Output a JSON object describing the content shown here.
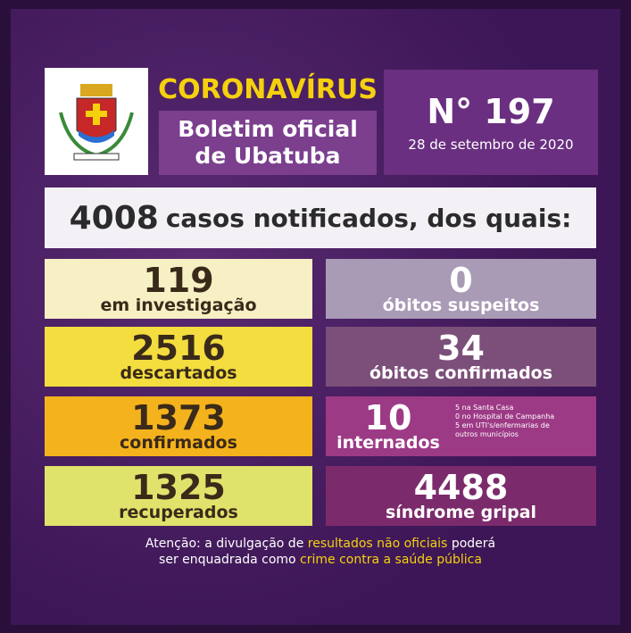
{
  "header": {
    "kicker": "CORONAVÍRUS",
    "title_line1": "Boletim oficial",
    "title_line2": "de Ubatuba",
    "number": "N° 197",
    "date": "28 de setembro de 2020"
  },
  "banner": {
    "number": 4008,
    "text": "casos notificados, dos quais:"
  },
  "left": [
    {
      "value": 119,
      "label": "em investigação"
    },
    {
      "value": 2516,
      "label": "descartados"
    },
    {
      "value": 1373,
      "label": "confirmados"
    },
    {
      "value": 1325,
      "label": "recuperados"
    }
  ],
  "right": [
    {
      "value": 0,
      "label": "óbitos suspeitos"
    },
    {
      "value": 34,
      "label": "óbitos confirmados"
    },
    {
      "value": 10,
      "label": "internados",
      "notes": [
        "5 na Santa Casa",
        "0 no Hospital de Campanha",
        "5 em UTI's/enfermarias de",
        "outros municípios"
      ]
    },
    {
      "value": 4488,
      "label": "síndrome gripal"
    }
  ],
  "footer": {
    "line1_a": "Atenção: a divulgação de",
    "line1_b": "resultados não oficiais",
    "line1_c": "poderá",
    "line2_a": "ser enquadrada como",
    "line2_b": "crime contra a saúde pública"
  }
}
